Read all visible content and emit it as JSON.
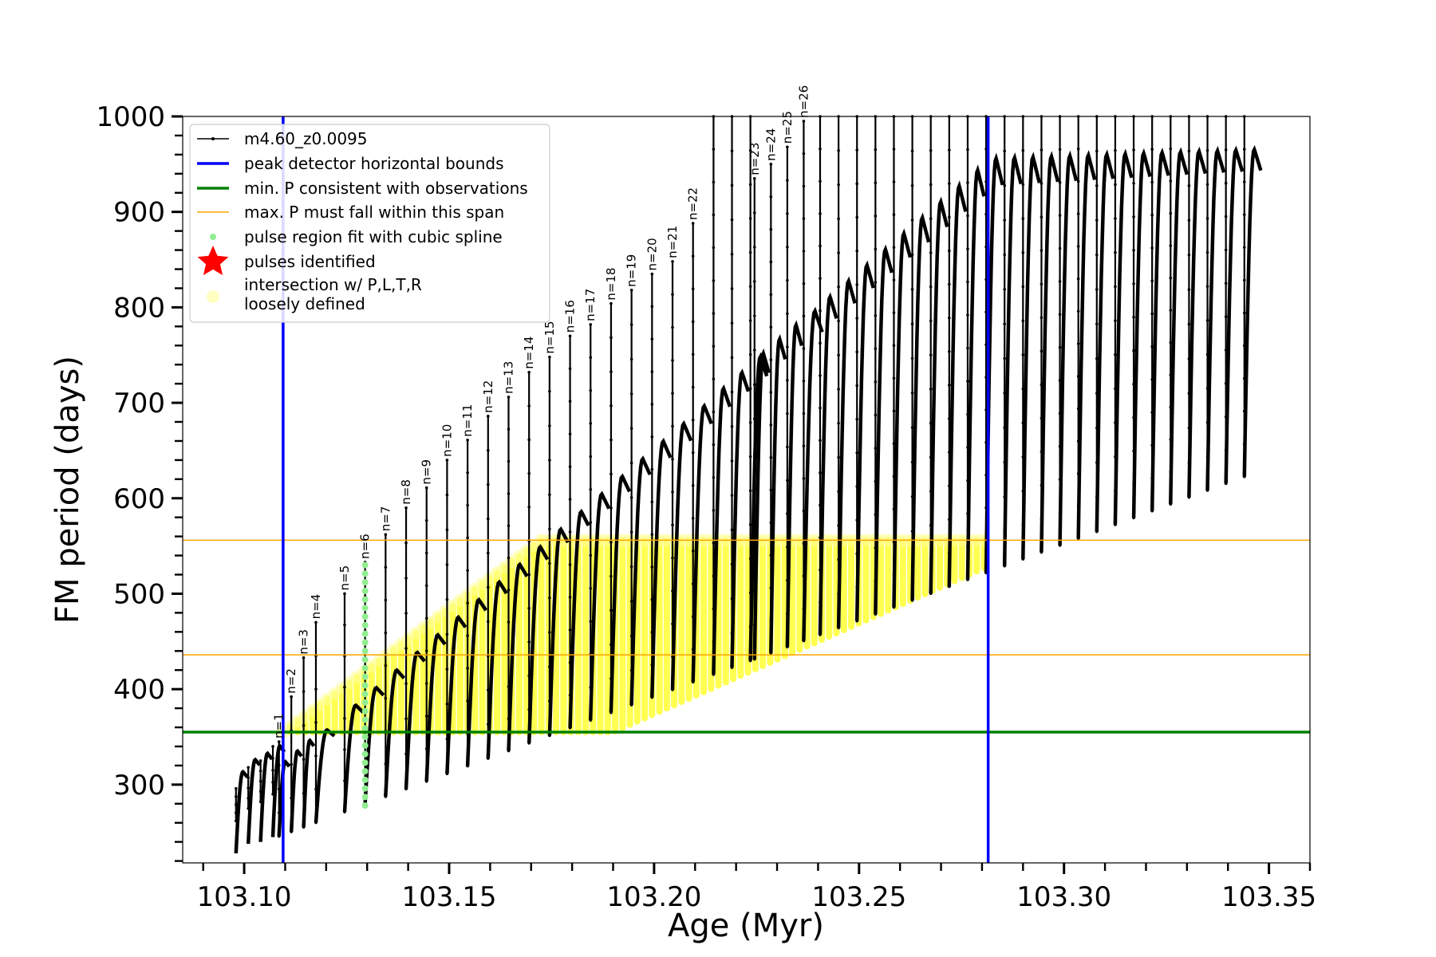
{
  "chart_data": {
    "type": "line",
    "xlabel": "Age (Myr)",
    "ylabel": "FM period (days)",
    "xlim": [
      103.085,
      103.36
    ],
    "ylim": [
      218,
      1000
    ],
    "xticks": [
      103.1,
      103.15,
      103.2,
      103.25,
      103.3,
      103.35
    ],
    "xtick_labels": [
      "103.10",
      "103.15",
      "103.20",
      "103.25",
      "103.30",
      "103.35"
    ],
    "yticks": [
      300,
      400,
      500,
      600,
      700,
      800,
      900,
      1000
    ],
    "ytick_labels": [
      "300",
      "400",
      "500",
      "600",
      "700",
      "800",
      "900",
      "1000"
    ],
    "legend_position": "upper left",
    "legend": [
      {
        "label": "m4.60_z0.0095",
        "color": "#000000",
        "marker": "line-dot"
      },
      {
        "label": "peak detector horizontal bounds",
        "color": "#0000ff",
        "marker": "line"
      },
      {
        "label": "min. P consistent with observations",
        "color": "#008000",
        "marker": "line"
      },
      {
        "label": "max. P must fall within this span",
        "color": "#ffa500",
        "marker": "thin-line"
      },
      {
        "label": "pulse region fit with cubic spline",
        "color": "#90ee90",
        "marker": "dot"
      },
      {
        "label": "pulses identified",
        "color": "#ff0000",
        "marker": "star"
      },
      {
        "label": "intersection w/ P,L,T,R\nloosely defined",
        "color": "#ffffaa",
        "marker": "circle"
      }
    ],
    "vertical_bounds": [
      103.1095,
      103.2815
    ],
    "min_period_line": 355,
    "max_period_span": [
      436,
      556
    ],
    "pulses": [
      {
        "label": "n=1",
        "age": 103.1085,
        "peak": 345
      },
      {
        "label": "n=2",
        "age": 103.1115,
        "peak": 392
      },
      {
        "label": "n=3",
        "age": 103.1145,
        "peak": 433
      },
      {
        "label": "n=4",
        "age": 103.1175,
        "peak": 470
      },
      {
        "label": "n=5",
        "age": 103.1245,
        "peak": 500
      },
      {
        "label": "n=6",
        "age": 103.1295,
        "peak": 533
      },
      {
        "label": "n=7",
        "age": 103.1345,
        "peak": 562
      },
      {
        "label": "n=8",
        "age": 103.1395,
        "peak": 590
      },
      {
        "label": "n=9",
        "age": 103.1445,
        "peak": 611
      },
      {
        "label": "n=10",
        "age": 103.1495,
        "peak": 640
      },
      {
        "label": "n=11",
        "age": 103.1545,
        "peak": 661
      },
      {
        "label": "n=12",
        "age": 103.1595,
        "peak": 686
      },
      {
        "label": "n=13",
        "age": 103.1645,
        "peak": 706
      },
      {
        "label": "n=14",
        "age": 103.1695,
        "peak": 732
      },
      {
        "label": "n=15",
        "age": 103.1745,
        "peak": 748
      },
      {
        "label": "n=16",
        "age": 103.1795,
        "peak": 770
      },
      {
        "label": "n=17",
        "age": 103.1845,
        "peak": 782
      },
      {
        "label": "n=18",
        "age": 103.1895,
        "peak": 804
      },
      {
        "label": "n=19",
        "age": 103.1945,
        "peak": 818
      },
      {
        "label": "n=20",
        "age": 103.1995,
        "peak": 835
      },
      {
        "label": "n=21",
        "age": 103.2045,
        "peak": 848
      },
      {
        "label": "n=22",
        "age": 103.2095,
        "peak": 888
      },
      {
        "label": "n=23",
        "age": 103.2245,
        "peak": 935
      },
      {
        "label": "n=24",
        "age": 103.2285,
        "peak": 950
      },
      {
        "label": "n=25",
        "age": 103.2325,
        "peak": 968
      },
      {
        "label": "n=26",
        "age": 103.2365,
        "peak": 995
      }
    ]
  }
}
